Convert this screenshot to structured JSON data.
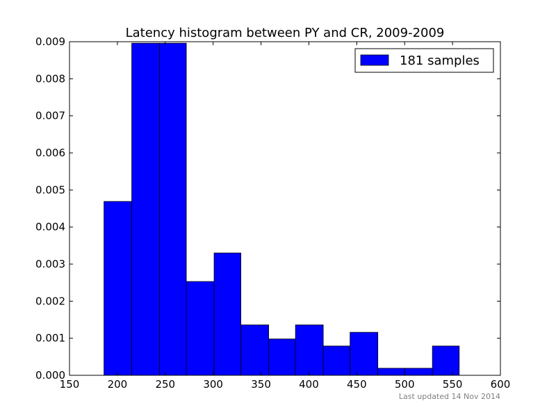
{
  "chart_data": {
    "type": "bar",
    "title": "Latency histogram between PY and CR, 2009-2009",
    "xlabel": "",
    "ylabel": "",
    "xlim": [
      150,
      600
    ],
    "ylim": [
      0,
      0.009
    ],
    "xticks": [
      150,
      200,
      250,
      300,
      350,
      400,
      450,
      500,
      550,
      600
    ],
    "xtick_labels": [
      "150",
      "200",
      "250",
      "300",
      "350",
      "400",
      "450",
      "500",
      "550",
      "600"
    ],
    "yticks": [
      0,
      0.001,
      0.002,
      0.003,
      0.004,
      0.005,
      0.006,
      0.007,
      0.008,
      0.009
    ],
    "ytick_labels": [
      "0.000",
      "0.001",
      "0.002",
      "0.003",
      "0.004",
      "0.005",
      "0.006",
      "0.007",
      "0.008",
      "0.009"
    ],
    "grid": false,
    "legend_position": "top-right",
    "series": [
      {
        "name": "181 samples",
        "color": "#0000ff",
        "bins": [
          {
            "x0": 186,
            "x1": 215,
            "value": 0.00469
          },
          {
            "x0": 215,
            "x1": 244,
            "value": 0.00896
          },
          {
            "x0": 244,
            "x1": 272,
            "value": 0.00896
          },
          {
            "x0": 272,
            "x1": 301,
            "value": 0.00253
          },
          {
            "x0": 301,
            "x1": 329,
            "value": 0.0033
          },
          {
            "x0": 329,
            "x1": 358,
            "value": 0.00136
          },
          {
            "x0": 358,
            "x1": 386,
            "value": 0.00098
          },
          {
            "x0": 386,
            "x1": 415,
            "value": 0.00136
          },
          {
            "x0": 415,
            "x1": 443,
            "value": 0.00079
          },
          {
            "x0": 443,
            "x1": 472,
            "value": 0.00116
          },
          {
            "x0": 472,
            "x1": 500,
            "value": 0.00019
          },
          {
            "x0": 500,
            "x1": 529,
            "value": 0.00019
          },
          {
            "x0": 529,
            "x1": 557,
            "value": 0.00079
          }
        ]
      }
    ],
    "footnote": "Last updated 14 Nov 2014"
  }
}
